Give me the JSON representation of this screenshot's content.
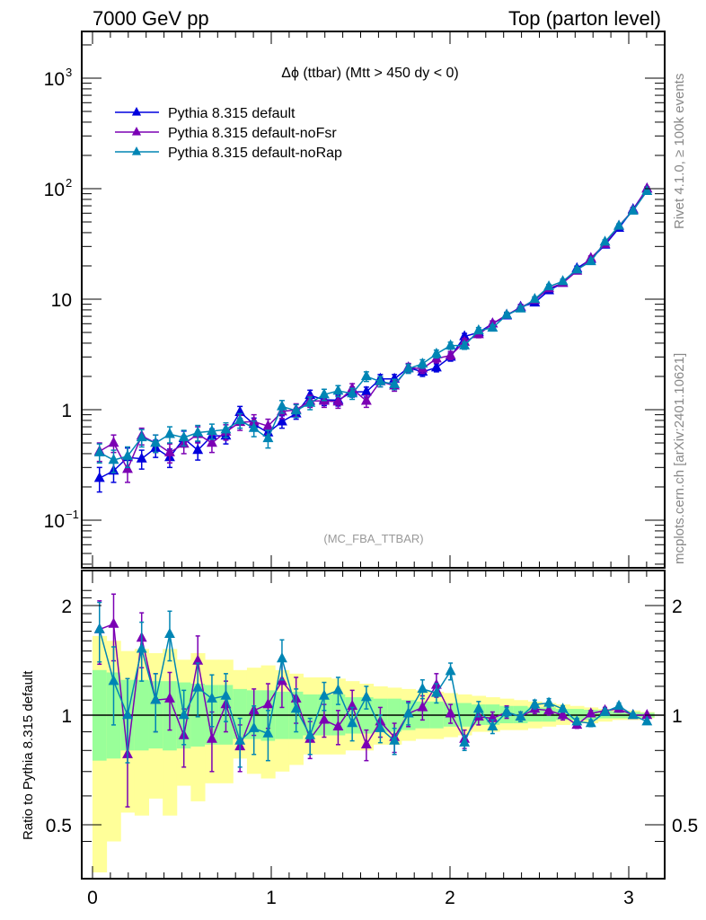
{
  "header": {
    "left": "7000 GeV pp",
    "right": "Top (parton level)"
  },
  "side_labels": {
    "rivet": "Rivet 4.1.0, ≥ 100k events",
    "mcplots": "mcplots.cern.ch [arXiv:2401.10621]"
  },
  "chart_data": [
    {
      "type": "line",
      "panel": "main",
      "title": "Δϕ (ttbar) (Mtt > 450 dy < 0)",
      "watermark": "(MC_FBA_TTBAR)",
      "xlabel": "",
      "ylabel": "",
      "xlim": [
        0,
        3.1416
      ],
      "ylim": [
        0.04,
        2500
      ],
      "yscale": "log",
      "x_ticks": [
        "0",
        "1",
        "2",
        "3"
      ],
      "y_ticks": [
        {
          "value": 0.1,
          "base": "10",
          "exp": "−1"
        },
        {
          "value": 1,
          "base": "1",
          "exp": ""
        },
        {
          "value": 10,
          "base": "10",
          "exp": ""
        },
        {
          "value": 100,
          "base": "10",
          "exp": "2"
        },
        {
          "value": 1000,
          "base": "10",
          "exp": "3"
        }
      ],
      "legend_position": "top-left",
      "x": [
        0.039,
        0.118,
        0.196,
        0.275,
        0.353,
        0.432,
        0.511,
        0.589,
        0.668,
        0.746,
        0.825,
        0.903,
        0.982,
        1.06,
        1.139,
        1.217,
        1.296,
        1.374,
        1.453,
        1.532,
        1.61,
        1.689,
        1.767,
        1.846,
        1.924,
        2.003,
        2.081,
        2.16,
        2.238,
        2.317,
        2.395,
        2.474,
        2.553,
        2.631,
        2.71,
        2.788,
        2.867,
        2.945,
        3.024,
        3.102
      ],
      "series": [
        {
          "name": "Pythia 8.315 default",
          "color": "#0000dd",
          "values": [
            0.24,
            0.28,
            0.37,
            0.36,
            0.45,
            0.37,
            0.55,
            0.43,
            0.58,
            0.58,
            0.95,
            0.74,
            0.62,
            0.78,
            0.92,
            1.35,
            1.23,
            1.22,
            1.45,
            1.45,
            1.9,
            1.9,
            2.4,
            2.2,
            2.4,
            3.0,
            4.6,
            5.0,
            6.0,
            7.1,
            8.5,
            9.3,
            12.0,
            14.0,
            19.0,
            23.0,
            31.0,
            44.0,
            65.0,
            100.0
          ],
          "errors": [
            0.06,
            0.06,
            0.08,
            0.07,
            0.08,
            0.07,
            0.09,
            0.08,
            0.09,
            0.09,
            0.12,
            0.1,
            0.1,
            0.1,
            0.1,
            0.15,
            0.14,
            0.14,
            0.15,
            0.15,
            0.18,
            0.18,
            0.2,
            0.2,
            0.2,
            0.25,
            0.3,
            0.3,
            0.35,
            0.4,
            0.45,
            0.5,
            0.6,
            0.7,
            0.9,
            1.0,
            1.3,
            1.8,
            2.5,
            3.5
          ]
        },
        {
          "name": "Pythia 8.315 default-noFsr",
          "color": "#7b00b4",
          "values": [
            0.42,
            0.5,
            0.29,
            0.58,
            0.5,
            0.41,
            0.49,
            0.6,
            0.5,
            0.63,
            0.77,
            0.78,
            0.71,
            0.96,
            1.0,
            1.2,
            1.2,
            1.18,
            1.55,
            1.2,
            1.8,
            1.65,
            2.4,
            2.35,
            2.9,
            3.1,
            4.1,
            4.8,
            6.0,
            7.2,
            8.4,
            9.8,
            12.5,
            14.0,
            18.0,
            23.5,
            31.5,
            46.0,
            64.0,
            100.0
          ],
          "errors": [
            0.08,
            0.09,
            0.07,
            0.1,
            0.09,
            0.08,
            0.09,
            0.1,
            0.09,
            0.1,
            0.12,
            0.12,
            0.11,
            0.13,
            0.13,
            0.15,
            0.15,
            0.15,
            0.17,
            0.15,
            0.19,
            0.18,
            0.22,
            0.22,
            0.25,
            0.26,
            0.3,
            0.32,
            0.36,
            0.4,
            0.45,
            0.5,
            0.6,
            0.7,
            0.9,
            1.1,
            1.4,
            1.9,
            2.6,
            3.6
          ]
        },
        {
          "name": "Pythia 8.315 default-noRap",
          "color": "#0085b4",
          "values": [
            0.41,
            0.35,
            0.38,
            0.56,
            0.5,
            0.6,
            0.56,
            0.62,
            0.64,
            0.66,
            0.8,
            0.68,
            0.55,
            1.07,
            0.98,
            1.15,
            1.37,
            1.48,
            1.4,
            2.0,
            1.8,
            1.7,
            2.35,
            2.6,
            3.2,
            3.8,
            3.8,
            5.2,
            5.5,
            7.2,
            8.2,
            10.0,
            13.0,
            14.5,
            18.5,
            22.0,
            33.0,
            46.0,
            63.0,
            95.0
          ],
          "errors": [
            0.08,
            0.08,
            0.08,
            0.1,
            0.09,
            0.1,
            0.09,
            0.1,
            0.1,
            0.1,
            0.12,
            0.11,
            0.1,
            0.14,
            0.13,
            0.15,
            0.16,
            0.17,
            0.16,
            0.2,
            0.19,
            0.18,
            0.22,
            0.23,
            0.26,
            0.28,
            0.28,
            0.33,
            0.34,
            0.4,
            0.44,
            0.5,
            0.6,
            0.7,
            0.9,
            1.0,
            1.4,
            1.9,
            2.5,
            3.4
          ]
        }
      ]
    },
    {
      "type": "line",
      "panel": "ratio",
      "ylabel": "Ratio to Pythia 8.315 default",
      "xlim": [
        0,
        3.1416
      ],
      "ylim": [
        0.42,
        2.3
      ],
      "yscale": "log",
      "x_ticks": [
        "0",
        "1",
        "2",
        "3"
      ],
      "y_ticks": [
        {
          "value": 0.5,
          "label": "0.5"
        },
        {
          "value": 1,
          "label": "1"
        },
        {
          "value": 2,
          "label": "2"
        }
      ],
      "reference_line": 1,
      "bands": {
        "inner_color": "#99ff99",
        "outer_color": "#ffff99",
        "inner_lo": [
          0.75,
          0.76,
          0.8,
          0.8,
          0.81,
          0.8,
          0.81,
          0.82,
          0.83,
          0.83,
          0.86,
          0.86,
          0.85,
          0.86,
          0.86,
          0.88,
          0.88,
          0.88,
          0.89,
          0.89,
          0.9,
          0.9,
          0.91,
          0.92,
          0.92,
          0.93,
          0.93,
          0.94,
          0.94,
          0.95,
          0.95,
          0.96,
          0.96,
          0.97,
          0.97,
          0.97,
          0.98,
          0.98,
          0.98,
          0.985
        ],
        "inner_hi": [
          1.33,
          1.31,
          1.25,
          1.25,
          1.24,
          1.24,
          1.23,
          1.22,
          1.21,
          1.21,
          1.18,
          1.17,
          1.17,
          1.16,
          1.16,
          1.14,
          1.14,
          1.14,
          1.12,
          1.12,
          1.11,
          1.11,
          1.1,
          1.09,
          1.09,
          1.08,
          1.08,
          1.07,
          1.07,
          1.06,
          1.06,
          1.05,
          1.05,
          1.04,
          1.04,
          1.035,
          1.03,
          1.025,
          1.02,
          1.015
        ],
        "outer_lo": [
          0.37,
          0.45,
          0.54,
          0.53,
          0.59,
          0.53,
          0.64,
          0.58,
          0.65,
          0.65,
          0.76,
          0.69,
          0.67,
          0.7,
          0.73,
          0.78,
          0.78,
          0.78,
          0.8,
          0.8,
          0.83,
          0.83,
          0.85,
          0.86,
          0.86,
          0.87,
          0.88,
          0.9,
          0.9,
          0.91,
          0.91,
          0.92,
          0.93,
          0.94,
          0.95,
          0.95,
          0.96,
          0.97,
          0.97,
          0.98
        ],
        "outer_hi": [
          1.65,
          1.6,
          1.5,
          1.52,
          1.48,
          1.52,
          1.42,
          1.48,
          1.42,
          1.42,
          1.33,
          1.35,
          1.37,
          1.33,
          1.3,
          1.27,
          1.27,
          1.26,
          1.24,
          1.22,
          1.2,
          1.19,
          1.18,
          1.17,
          1.16,
          1.15,
          1.14,
          1.13,
          1.12,
          1.11,
          1.1,
          1.09,
          1.08,
          1.07,
          1.06,
          1.05,
          1.04,
          1.035,
          1.03,
          1.02
        ]
      },
      "series": [
        {
          "name": "Pythia 8.315 default-noFsr",
          "color": "#7b00b4",
          "values": [
            1.72,
            1.78,
            0.78,
            1.63,
            1.1,
            1.11,
            0.88,
            1.41,
            0.86,
            1.07,
            0.82,
            1.03,
            1.07,
            1.24,
            1.11,
            0.86,
            0.97,
            0.93,
            1.06,
            0.83,
            0.96,
            0.87,
            1.01,
            1.05,
            1.21,
            1.01,
            0.86,
            0.99,
            0.98,
            1.02,
            0.99,
            1.04,
            1.03,
            1.0,
            0.94,
            1.01,
            1.03,
            1.04,
            1.0,
            1.0
          ],
          "err_lo": [
            0.34,
            0.37,
            0.22,
            0.28,
            0.2,
            0.2,
            0.16,
            0.24,
            0.16,
            0.17,
            0.12,
            0.15,
            0.15,
            0.19,
            0.16,
            0.1,
            0.1,
            0.1,
            0.11,
            0.08,
            0.09,
            0.08,
            0.08,
            0.08,
            0.09,
            0.06,
            0.05,
            0.05,
            0.04,
            0.04,
            0.03,
            0.03,
            0.03,
            0.03,
            0.02,
            0.02,
            0.02,
            0.02,
            0.01,
            0.01
          ],
          "err_hi": [
            0.34,
            0.37,
            0.22,
            0.28,
            0.2,
            0.2,
            0.16,
            0.24,
            0.16,
            0.17,
            0.12,
            0.15,
            0.15,
            0.19,
            0.16,
            0.1,
            0.1,
            0.1,
            0.11,
            0.08,
            0.09,
            0.08,
            0.08,
            0.08,
            0.09,
            0.06,
            0.05,
            0.05,
            0.04,
            0.04,
            0.03,
            0.03,
            0.03,
            0.03,
            0.02,
            0.02,
            0.02,
            0.02,
            0.01,
            0.01
          ]
        },
        {
          "name": "Pythia 8.315 default-noRap",
          "color": "#0085b4",
          "values": [
            1.72,
            1.24,
            1.0,
            1.52,
            1.1,
            1.67,
            1.0,
            1.19,
            1.11,
            1.13,
            0.85,
            0.92,
            0.89,
            1.43,
            1.04,
            0.88,
            1.13,
            1.17,
            0.95,
            1.12,
            0.92,
            0.85,
            1.01,
            1.18,
            1.15,
            1.32,
            0.84,
            1.04,
            0.93,
            1.02,
            0.99,
            1.07,
            1.08,
            1.04,
            0.96,
            0.95,
            1.02,
            1.06,
            1.0,
            0.96
          ],
          "err_lo": [
            0.32,
            0.3,
            0.26,
            0.28,
            0.2,
            0.26,
            0.17,
            0.2,
            0.18,
            0.17,
            0.13,
            0.14,
            0.14,
            0.18,
            0.14,
            0.1,
            0.1,
            0.1,
            0.1,
            0.08,
            0.08,
            0.07,
            0.07,
            0.07,
            0.07,
            0.07,
            0.04,
            0.05,
            0.04,
            0.03,
            0.03,
            0.03,
            0.03,
            0.02,
            0.02,
            0.02,
            0.02,
            0.02,
            0.01,
            0.01
          ],
          "err_hi": [
            0.32,
            0.3,
            0.26,
            0.28,
            0.2,
            0.26,
            0.17,
            0.2,
            0.18,
            0.17,
            0.13,
            0.14,
            0.14,
            0.18,
            0.14,
            0.1,
            0.1,
            0.1,
            0.1,
            0.08,
            0.08,
            0.07,
            0.07,
            0.07,
            0.07,
            0.07,
            0.04,
            0.05,
            0.04,
            0.03,
            0.03,
            0.03,
            0.03,
            0.02,
            0.02,
            0.02,
            0.02,
            0.02,
            0.01,
            0.01
          ]
        }
      ]
    }
  ]
}
